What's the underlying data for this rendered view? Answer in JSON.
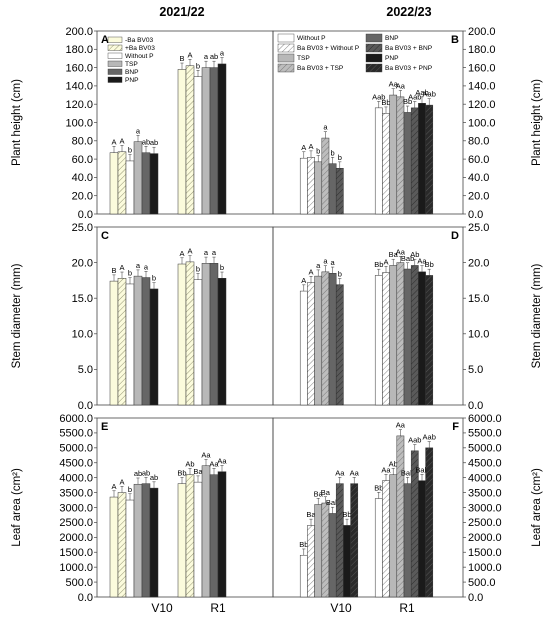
{
  "figure": {
    "column_titles": [
      "2021/22",
      "2022/23"
    ],
    "x_categories": [
      "V10",
      "R1"
    ]
  },
  "legend_2021": [
    {
      "label": "-Ba BV03",
      "style": "solid-yellow"
    },
    {
      "label": "+Ba BV03",
      "style": "hatch-yellow"
    },
    {
      "label": "Without P",
      "style": "white"
    },
    {
      "label": "TSP",
      "style": "lightgray"
    },
    {
      "label": "BNP",
      "style": "darkgray"
    },
    {
      "label": "PNP",
      "style": "black"
    }
  ],
  "legend_2022": [
    {
      "label": "Without P",
      "style": "white"
    },
    {
      "label": "Ba BV03 + Without P",
      "style": "hatch-white"
    },
    {
      "label": "TSP",
      "style": "lightgray"
    },
    {
      "label": "Ba BV03 + TSP",
      "style": "hatch-gray"
    },
    {
      "label": "BNP",
      "style": "darkgray"
    },
    {
      "label": "Ba BV03 + BNP",
      "style": "hatch-darkgray"
    },
    {
      "label": "PNP",
      "style": "black"
    },
    {
      "label": "Ba BV03 + PNP",
      "style": "hatch-black"
    }
  ],
  "colors": {
    "solid-yellow": "#fbfbdc",
    "hatch-yellow": "#fbfbdc",
    "white": "#ffffff",
    "hatch-white": "#ffffff",
    "lightgray": "#b8b8b8",
    "hatch-gray": "#a8a8a8",
    "darkgray": "#666666",
    "hatch-darkgray": "#555555",
    "black": "#1a1a1a",
    "hatch-black": "#2a2a2a"
  },
  "chart_data": [
    {
      "panel": "A",
      "type": "bar",
      "column": "2021/22",
      "ylabel": "Plant height (cm)",
      "ylim": [
        0,
        200
      ],
      "yticks": [
        "0.0",
        "20.0",
        "40.0",
        "60.0",
        "80.0",
        "100.0",
        "120.0",
        "140.0",
        "160.0",
        "180.0",
        "200.0"
      ],
      "categories": [
        "V10",
        "R1"
      ],
      "series": [
        {
          "name": "-Ba BV03",
          "style": "solid-yellow",
          "values": [
            67,
            158
          ],
          "letters": [
            "A",
            "B"
          ]
        },
        {
          "name": "+Ba BV03",
          "style": "hatch-yellow",
          "values": [
            68,
            162
          ],
          "letters": [
            "A",
            "A"
          ]
        },
        {
          "name": "Without P",
          "style": "white",
          "values": [
            58,
            150
          ],
          "letters": [
            "b",
            "b"
          ]
        },
        {
          "name": "TSP",
          "style": "lightgray",
          "values": [
            79,
            160
          ],
          "letters": [
            "a",
            "a"
          ]
        },
        {
          "name": "BNP",
          "style": "darkgray",
          "values": [
            67,
            160
          ],
          "letters": [
            "ab",
            "ab"
          ]
        },
        {
          "name": "PNP",
          "style": "black",
          "values": [
            66,
            164
          ],
          "letters": [
            "ab",
            "a"
          ]
        }
      ]
    },
    {
      "panel": "B",
      "type": "bar",
      "column": "2022/23",
      "ylabel": "Plant height (cm)",
      "ylim": [
        0,
        200
      ],
      "yticks": [
        "0.0",
        "20.0",
        "40.0",
        "60.0",
        "80.0",
        "100.0",
        "120.0",
        "140.0",
        "160.0",
        "180.0",
        "200.0"
      ],
      "categories": [
        "V10",
        "R1"
      ],
      "series": [
        {
          "name": "Without P",
          "style": "white",
          "values": [
            61,
            116
          ],
          "letters": [
            "A",
            "Aab"
          ]
        },
        {
          "name": "Ba BV03 + Without P",
          "style": "hatch-white",
          "values": [
            62,
            110
          ],
          "letters": [
            "A",
            "Bb"
          ]
        },
        {
          "name": "TSP",
          "style": "lightgray",
          "values": [
            57,
            130
          ],
          "letters": [
            "b",
            "Aa"
          ]
        },
        {
          "name": "Ba BV03 + TSP",
          "style": "hatch-gray",
          "values": [
            83,
            128
          ],
          "letters": [
            "a",
            "Aa"
          ]
        },
        {
          "name": "BNP",
          "style": "darkgray",
          "values": [
            55,
            111
          ],
          "letters": [
            "b",
            "Bb"
          ]
        },
        {
          "name": "Ba BV03 + BNP",
          "style": "hatch-darkgray",
          "values": [
            50,
            116
          ],
          "letters": [
            "b",
            "Aab"
          ]
        },
        {
          "name": "PNP",
          "style": "black",
          "values": [
            null,
            121
          ],
          "letters": [
            "",
            "Aab"
          ]
        },
        {
          "name": "Ba BV03 + PNP",
          "style": "hatch-black",
          "values": [
            null,
            119
          ],
          "letters": [
            "",
            "Aab"
          ]
        }
      ]
    },
    {
      "panel": "C",
      "type": "bar",
      "column": "2021/22",
      "ylabel": "Stem diameter (mm)",
      "ylim": [
        0,
        25
      ],
      "yticks": [
        "0.0",
        "5.0",
        "10.0",
        "15.0",
        "20.0",
        "25.0"
      ],
      "categories": [
        "V10",
        "R1"
      ],
      "series": [
        {
          "name": "-Ba BV03",
          "style": "solid-yellow",
          "values": [
            17.4,
            19.8
          ],
          "letters": [
            "B",
            "A"
          ]
        },
        {
          "name": "+Ba BV03",
          "style": "hatch-yellow",
          "values": [
            17.8,
            20.1
          ],
          "letters": [
            "A",
            "A"
          ]
        },
        {
          "name": "Without P",
          "style": "white",
          "values": [
            17.0,
            17.6
          ],
          "letters": [
            "b",
            "b"
          ]
        },
        {
          "name": "TSP",
          "style": "lightgray",
          "values": [
            18.1,
            19.9
          ],
          "letters": [
            "a",
            "a"
          ]
        },
        {
          "name": "BNP",
          "style": "darkgray",
          "values": [
            17.9,
            19.9
          ],
          "letters": [
            "a",
            "a"
          ]
        },
        {
          "name": "PNP",
          "style": "black",
          "values": [
            16.3,
            17.8
          ],
          "letters": [
            "b",
            "b"
          ]
        }
      ]
    },
    {
      "panel": "D",
      "type": "bar",
      "column": "2022/23",
      "ylabel": "Stem diameter (mm)",
      "ylim": [
        0,
        25
      ],
      "yticks": [
        "0.0",
        "5.0",
        "10.0",
        "15.0",
        "20.0",
        "25.0"
      ],
      "categories": [
        "V10",
        "R1"
      ],
      "series": [
        {
          "name": "Without P",
          "style": "white",
          "values": [
            16.0,
            18.2
          ],
          "letters": [
            "A",
            "Bb"
          ]
        },
        {
          "name": "Ba BV03 + Without P",
          "style": "hatch-white",
          "values": [
            17.2,
            18.6
          ],
          "letters": [
            "A",
            "A"
          ]
        },
        {
          "name": "TSP",
          "style": "lightgray",
          "values": [
            18.1,
            19.6
          ],
          "letters": [
            "a",
            "Ba"
          ]
        },
        {
          "name": "Ba BV03 + TSP",
          "style": "hatch-gray",
          "values": [
            18.7,
            20.0
          ],
          "letters": [
            "a",
            "Aa"
          ]
        },
        {
          "name": "BNP",
          "style": "darkgray",
          "values": [
            18.5,
            19.1
          ],
          "letters": [
            "a",
            "Bab"
          ]
        },
        {
          "name": "Ba BV03 + BNP",
          "style": "hatch-darkgray",
          "values": [
            16.9,
            19.6
          ],
          "letters": [
            "b",
            "Ab"
          ]
        },
        {
          "name": "PNP",
          "style": "black",
          "values": [
            null,
            18.7
          ],
          "letters": [
            "",
            "Aa"
          ]
        },
        {
          "name": "Ba BV03 + PNP",
          "style": "hatch-black",
          "values": [
            null,
            18.2
          ],
          "letters": [
            "",
            "Bb"
          ]
        }
      ]
    },
    {
      "panel": "E",
      "type": "bar",
      "column": "2021/22",
      "ylabel": "Leaf area (cm²)",
      "ylim": [
        0,
        6000
      ],
      "yticks": [
        "0.0",
        "500.0",
        "1000.0",
        "1500.0",
        "2000.0",
        "2500.0",
        "3000.0",
        "3500.0",
        "4000.0",
        "4500.0",
        "5000.0",
        "5500.0",
        "6000.0"
      ],
      "categories": [
        "V10",
        "R1"
      ],
      "series": [
        {
          "name": "-Ba BV03",
          "style": "solid-yellow",
          "values": [
            3350,
            3800
          ],
          "letters": [
            "A",
            "Bb"
          ]
        },
        {
          "name": "+Ba BV03",
          "style": "hatch-yellow",
          "values": [
            3500,
            4100
          ],
          "letters": [
            "A",
            "Ab"
          ]
        },
        {
          "name": "Without P",
          "style": "white",
          "values": [
            3250,
            3850
          ],
          "letters": [
            "b",
            "Ba"
          ]
        },
        {
          "name": "TSP",
          "style": "lightgray",
          "values": [
            3780,
            4400
          ],
          "letters": [
            "ab",
            "Aa"
          ]
        },
        {
          "name": "BNP",
          "style": "darkgray",
          "values": [
            3800,
            4100
          ],
          "letters": [
            "ab",
            "Aa"
          ]
        },
        {
          "name": "PNP",
          "style": "black",
          "values": [
            3650,
            4200
          ],
          "letters": [
            "ab",
            "Aa"
          ]
        }
      ]
    },
    {
      "panel": "F",
      "type": "bar",
      "column": "2022/23",
      "ylabel": "Leaf area (cm²)",
      "ylim": [
        0,
        6000
      ],
      "yticks": [
        "0.0",
        "500.0",
        "1000.0",
        "1500.0",
        "2000.0",
        "2500.0",
        "3000.0",
        "3500.0",
        "4000.0",
        "4500.0",
        "5000.0",
        "5500.0",
        "6000.0"
      ],
      "categories": [
        "V10",
        "R1"
      ],
      "series": [
        {
          "name": "Without P",
          "style": "white",
          "values": [
            1400,
            3300
          ],
          "letters": [
            "Bb",
            "Bb"
          ]
        },
        {
          "name": "Ba BV03 + Without P",
          "style": "hatch-white",
          "values": [
            2400,
            3900
          ],
          "letters": [
            "Ba",
            "Aa"
          ]
        },
        {
          "name": "TSP",
          "style": "lightgray",
          "values": [
            3100,
            4100
          ],
          "letters": [
            "Ba",
            "Ab"
          ]
        },
        {
          "name": "Ba BV03 + TSP",
          "style": "hatch-gray",
          "values": [
            3150,
            5400
          ],
          "letters": [
            "Ba",
            "Aa"
          ]
        },
        {
          "name": "BNP",
          "style": "darkgray",
          "values": [
            2800,
            3800
          ],
          "letters": [
            "Bab",
            "Bab"
          ]
        },
        {
          "name": "Ba BV03 + BNP",
          "style": "hatch-darkgray",
          "values": [
            3800,
            4900
          ],
          "letters": [
            "Aa",
            "Aab"
          ]
        },
        {
          "name": "PNP",
          "style": "black",
          "values": [
            2400,
            3900
          ],
          "letters": [
            "Bb",
            "Bab"
          ]
        },
        {
          "name": "Ba BV03 + PNP",
          "style": "hatch-black",
          "values": [
            3800,
            5000
          ],
          "letters": [
            "Aa",
            "Aab"
          ]
        }
      ]
    }
  ]
}
